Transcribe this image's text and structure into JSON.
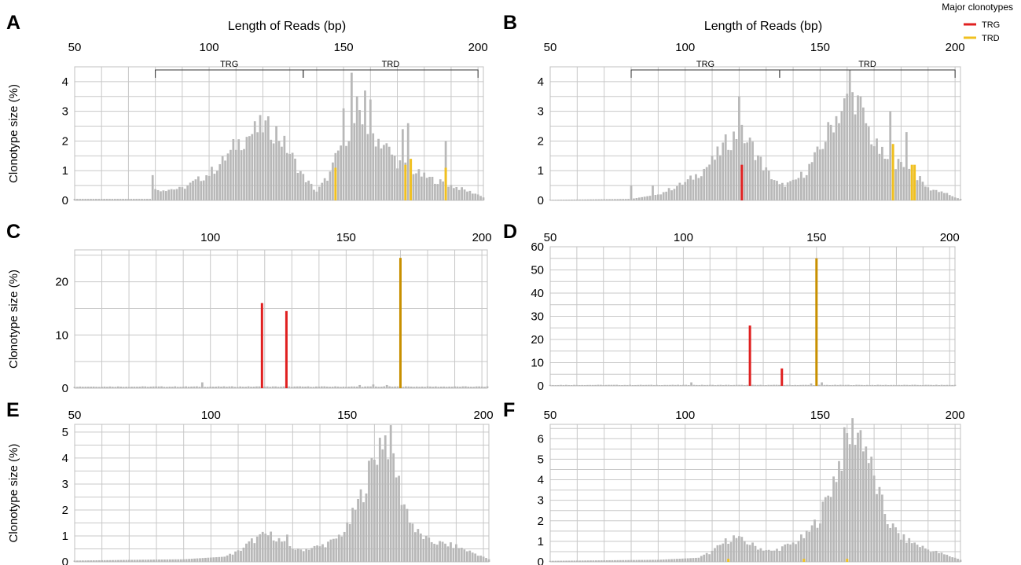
{
  "figure": {
    "legend": {
      "title": "Major clonotypes",
      "items": [
        {
          "label": "TRG",
          "color": "#e02020"
        },
        {
          "label": "TRD",
          "color": "#f0c020"
        }
      ]
    },
    "colors": {
      "bar": "#b8b8b8",
      "trg": "#e02020",
      "trd": "#f0c020",
      "trd_dark": "#c89000",
      "grid": "#c8c8c8"
    }
  },
  "chart_data": [
    {
      "panel": "A",
      "type": "bar",
      "xlabel": "Length of Reads (bp)",
      "ylabel": "Clonotype size (%)",
      "xlim": [
        50,
        202
      ],
      "ylim": [
        0,
        4.5
      ],
      "x_ticks": [
        "50",
        "100",
        "150",
        "200"
      ],
      "y_ticks": [
        "0",
        "1",
        "2",
        "3",
        "4"
      ],
      "brackets": [
        {
          "label": "TRG",
          "from": 80,
          "to": 135
        },
        {
          "label": "TRD",
          "from": 135,
          "to": 200
        }
      ],
      "profile": [
        [
          50,
          0.05
        ],
        [
          78,
          0.05
        ],
        [
          80,
          0.35
        ],
        [
          90,
          0.4
        ],
        [
          100,
          0.9
        ],
        [
          105,
          1.3
        ],
        [
          110,
          1.9
        ],
        [
          115,
          2.2
        ],
        [
          120,
          2.5
        ],
        [
          125,
          2.3
        ],
        [
          130,
          1.6
        ],
        [
          135,
          0.8
        ],
        [
          140,
          0.3
        ],
        [
          145,
          0.9
        ],
        [
          150,
          2.1
        ],
        [
          155,
          2.7
        ],
        [
          160,
          2.3
        ],
        [
          165,
          1.9
        ],
        [
          170,
          1.3
        ],
        [
          180,
          0.8
        ],
        [
          190,
          0.5
        ],
        [
          200,
          0.2
        ],
        [
          202,
          0.1
        ]
      ],
      "spikes": [
        [
          150,
          3.1
        ],
        [
          153,
          4.3
        ],
        [
          155,
          3.5
        ],
        [
          158,
          3.7
        ],
        [
          160,
          3.4
        ],
        [
          172,
          2.4
        ],
        [
          174,
          2.6
        ],
        [
          188,
          2.0
        ],
        [
          79,
          0.85
        ],
        [
          108,
          1.7
        ]
      ],
      "major": [
        {
          "x": 147,
          "value": 1.1,
          "clonotype": "TRD"
        },
        {
          "x": 173,
          "value": 1.2,
          "clonotype": "TRD"
        },
        {
          "x": 175,
          "value": 1.4,
          "clonotype": "TRD"
        },
        {
          "x": 188,
          "value": 1.1,
          "clonotype": "TRD"
        }
      ]
    },
    {
      "panel": "B",
      "type": "bar",
      "xlabel": "Length of Reads (bp)",
      "ylabel": "",
      "xlim": [
        50,
        202
      ],
      "ylim": [
        0,
        4.5
      ],
      "x_ticks": [
        "50",
        "100",
        "150",
        "200"
      ],
      "y_ticks": [
        "0",
        "1",
        "2",
        "3",
        "4"
      ],
      "brackets": [
        {
          "label": "TRG",
          "from": 80,
          "to": 135
        },
        {
          "label": "TRD",
          "from": 135,
          "to": 200
        }
      ],
      "profile": [
        [
          50,
          0.02
        ],
        [
          80,
          0.05
        ],
        [
          90,
          0.2
        ],
        [
          100,
          0.6
        ],
        [
          105,
          0.9
        ],
        [
          110,
          1.3
        ],
        [
          115,
          1.9
        ],
        [
          120,
          2.3
        ],
        [
          125,
          1.8
        ],
        [
          130,
          1.0
        ],
        [
          135,
          0.5
        ],
        [
          140,
          0.6
        ],
        [
          145,
          1.0
        ],
        [
          150,
          1.7
        ],
        [
          155,
          2.7
        ],
        [
          160,
          3.3
        ],
        [
          163,
          3.5
        ],
        [
          167,
          2.6
        ],
        [
          170,
          1.9
        ],
        [
          175,
          1.3
        ],
        [
          180,
          1.2
        ],
        [
          185,
          0.9
        ],
        [
          190,
          0.4
        ],
        [
          195,
          0.3
        ],
        [
          200,
          0.1
        ],
        [
          202,
          0.05
        ]
      ],
      "spikes": [
        [
          80,
          0.5
        ],
        [
          88,
          0.5
        ],
        [
          120,
          3.5
        ],
        [
          161,
          4.4
        ],
        [
          165,
          3.5
        ],
        [
          176,
          3.0
        ],
        [
          182,
          2.3
        ]
      ],
      "major": [
        {
          "x": 121,
          "value": 1.2,
          "clonotype": "TRG"
        },
        {
          "x": 177,
          "value": 1.9,
          "clonotype": "TRD"
        },
        {
          "x": 184,
          "value": 1.2,
          "clonotype": "TRD"
        },
        {
          "x": 185,
          "value": 1.2,
          "clonotype": "TRD"
        }
      ]
    },
    {
      "panel": "C",
      "type": "bar",
      "xlabel": "",
      "ylabel": "Clonotype size (%)",
      "xlim": [
        50,
        202
      ],
      "ylim": [
        0,
        26
      ],
      "x_ticks": [
        "100",
        "150",
        "200"
      ],
      "y_ticks": [
        "0",
        "10",
        "20"
      ],
      "profile": [
        [
          50,
          0.3
        ],
        [
          202,
          0.3
        ]
      ],
      "spikes": [
        [
          97,
          1.1
        ],
        [
          155,
          0.6
        ],
        [
          160,
          0.7
        ],
        [
          165,
          0.6
        ]
      ],
      "major": [
        {
          "x": 119,
          "value": 16.0,
          "clonotype": "TRG"
        },
        {
          "x": 128,
          "value": 14.5,
          "clonotype": "TRG"
        },
        {
          "x": 170,
          "value": 24.5,
          "clonotype": "TRD"
        }
      ]
    },
    {
      "panel": "D",
      "type": "bar",
      "xlabel": "",
      "ylabel": "",
      "xlim": [
        50,
        202
      ],
      "ylim": [
        0,
        60
      ],
      "x_ticks": [
        "50",
        "100",
        "150",
        "200"
      ],
      "y_ticks": [
        "0",
        "10",
        "20",
        "30",
        "40",
        "50",
        "60"
      ],
      "profile": [
        [
          50,
          0.4
        ],
        [
          202,
          0.4
        ]
      ],
      "spikes": [
        [
          103,
          1.5
        ],
        [
          148,
          1.0
        ],
        [
          152,
          1.5
        ]
      ],
      "major": [
        {
          "x": 125,
          "value": 26.0,
          "clonotype": "TRG"
        },
        {
          "x": 137,
          "value": 7.5,
          "clonotype": "TRG"
        },
        {
          "x": 150,
          "value": 55.0,
          "clonotype": "TRD"
        }
      ]
    },
    {
      "panel": "E",
      "type": "bar",
      "xlabel": "",
      "ylabel": "Clonotype size (%)",
      "xlim": [
        50,
        202
      ],
      "ylim": [
        0,
        5.3
      ],
      "x_ticks": [
        "50",
        "100",
        "150",
        "200"
      ],
      "y_ticks": [
        "0",
        "1",
        "2",
        "3",
        "4",
        "5"
      ],
      "profile": [
        [
          50,
          0.05
        ],
        [
          90,
          0.1
        ],
        [
          105,
          0.2
        ],
        [
          110,
          0.4
        ],
        [
          115,
          0.8
        ],
        [
          120,
          1.05
        ],
        [
          123,
          1.0
        ],
        [
          127,
          0.7
        ],
        [
          132,
          0.45
        ],
        [
          140,
          0.6
        ],
        [
          145,
          0.8
        ],
        [
          150,
          1.3
        ],
        [
          155,
          2.5
        ],
        [
          160,
          4.0
        ],
        [
          163,
          4.9
        ],
        [
          166,
          4.5
        ],
        [
          170,
          2.5
        ],
        [
          175,
          1.2
        ],
        [
          180,
          0.8
        ],
        [
          190,
          0.6
        ],
        [
          200,
          0.2
        ],
        [
          202,
          0.1
        ]
      ],
      "spikes": [
        [
          128,
          1.05
        ]
      ],
      "major": []
    },
    {
      "panel": "F",
      "type": "bar",
      "xlabel": "",
      "ylabel": "",
      "xlim": [
        50,
        202
      ],
      "ylim": [
        0,
        6.7
      ],
      "x_ticks": [
        "50",
        "100",
        "150",
        "200"
      ],
      "y_ticks": [
        "0",
        "1",
        "2",
        "3",
        "4",
        "5",
        "6"
      ],
      "profile": [
        [
          50,
          0.05
        ],
        [
          90,
          0.1
        ],
        [
          105,
          0.2
        ],
        [
          110,
          0.5
        ],
        [
          115,
          1.0
        ],
        [
          118,
          1.2
        ],
        [
          122,
          1.0
        ],
        [
          127,
          0.7
        ],
        [
          132,
          0.5
        ],
        [
          140,
          0.9
        ],
        [
          145,
          1.3
        ],
        [
          150,
          2.2
        ],
        [
          155,
          4.0
        ],
        [
          160,
          6.0
        ],
        [
          163,
          6.5
        ],
        [
          166,
          6.1
        ],
        [
          170,
          4.0
        ],
        [
          175,
          2.0
        ],
        [
          180,
          1.2
        ],
        [
          190,
          0.6
        ],
        [
          200,
          0.2
        ],
        [
          202,
          0.1
        ]
      ],
      "spikes": [],
      "major": [
        {
          "x": 116,
          "value": 0.15,
          "clonotype": "TRD"
        },
        {
          "x": 144,
          "value": 0.15,
          "clonotype": "TRD"
        },
        {
          "x": 160,
          "value": 0.15,
          "clonotype": "TRD"
        }
      ]
    }
  ]
}
